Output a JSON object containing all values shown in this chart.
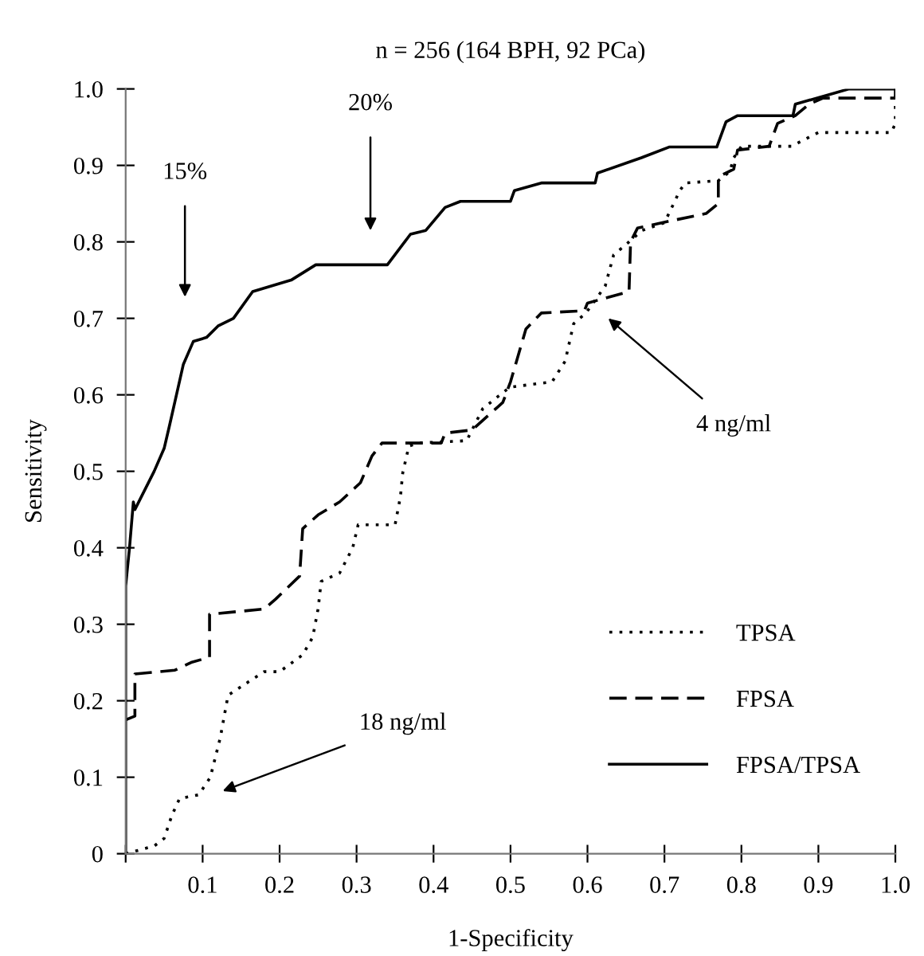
{
  "chart_data": {
    "type": "step",
    "title": "n = 256 (164 BPH, 92 PCa)",
    "xlabel": "1-Specificity",
    "ylabel": "Sensitivity",
    "xlim": [
      0,
      1.0
    ],
    "ylim": [
      0,
      1.0
    ],
    "xticks": [
      {
        "value": 0,
        "label": null
      },
      0.1,
      0.2,
      0.3,
      0.4,
      0.5,
      0.6,
      0.7,
      0.8,
      0.9,
      {
        "value": 1.0,
        "label": "1.0"
      }
    ],
    "yticks": [
      0,
      0.1,
      0.2,
      0.3,
      0.4,
      0.5,
      0.6,
      0.7,
      0.8,
      0.9,
      {
        "value": 1.0,
        "label": "1.0"
      }
    ],
    "grid": false,
    "legend": "bottom right",
    "marker": "none",
    "series": [
      {
        "name": "TPSA",
        "color": "#000000",
        "line_style": "dotted",
        "x": [
          0,
          0.037,
          0.05,
          0.06,
          0.07,
          0.095,
          0.11,
          0.123,
          0.133,
          0.16,
          0.18,
          0.2,
          0.23,
          0.243,
          0.25,
          0.254,
          0.278,
          0.295,
          0.302,
          0.35,
          0.357,
          0.36,
          0.368,
          0.381,
          0.443,
          0.464,
          0.499,
          0.554,
          0.571,
          0.582,
          0.598,
          0.623,
          0.634,
          0.654,
          0.671,
          0.7,
          0.72,
          0.727,
          0.77,
          0.785,
          0.79,
          0.8,
          0.865,
          0.9,
          0.995,
          1.0,
          1.0
        ],
        "values": [
          0,
          0.01,
          0.02,
          0.05,
          0.072,
          0.077,
          0.1,
          0.152,
          0.207,
          0.225,
          0.238,
          0.238,
          0.26,
          0.283,
          0.32,
          0.356,
          0.367,
          0.4,
          0.43,
          0.43,
          0.467,
          0.498,
          0.533,
          0.537,
          0.54,
          0.582,
          0.61,
          0.617,
          0.644,
          0.693,
          0.707,
          0.742,
          0.783,
          0.8,
          0.815,
          0.825,
          0.867,
          0.877,
          0.88,
          0.892,
          0.91,
          0.925,
          0.925,
          0.943,
          0.943,
          0.955,
          1.0
        ]
      },
      {
        "name": "FPSA",
        "color": "#000000",
        "line_style": "dashed",
        "x": [
          0,
          0.012,
          0.012,
          0.064,
          0.085,
          0.109,
          0.109,
          0.18,
          0.195,
          0.226,
          0.23,
          0.25,
          0.278,
          0.305,
          0.32,
          0.333,
          0.41,
          0.415,
          0.45,
          0.49,
          0.5,
          0.52,
          0.54,
          0.596,
          0.6,
          0.654,
          0.656,
          0.665,
          0.706,
          0.754,
          0.77,
          0.77,
          0.79,
          0.795,
          0.836,
          0.847,
          0.87,
          0.888,
          0.906,
          1.0,
          1.0
        ],
        "values": [
          0.175,
          0.18,
          0.235,
          0.24,
          0.25,
          0.257,
          0.313,
          0.32,
          0.333,
          0.363,
          0.425,
          0.443,
          0.46,
          0.485,
          0.52,
          0.537,
          0.537,
          0.55,
          0.554,
          0.59,
          0.617,
          0.686,
          0.707,
          0.71,
          0.72,
          0.735,
          0.8,
          0.818,
          0.827,
          0.837,
          0.85,
          0.885,
          0.895,
          0.92,
          0.925,
          0.955,
          0.965,
          0.98,
          0.988,
          0.988,
          1.0
        ]
      },
      {
        "name": "FPSA/TPSA",
        "color": "#000000",
        "line_style": "solid",
        "x": [
          0,
          0,
          0.005,
          0.01,
          0.012,
          0.037,
          0.05,
          0.057,
          0.075,
          0.088,
          0.105,
          0.12,
          0.14,
          0.165,
          0.215,
          0.247,
          0.34,
          0.37,
          0.39,
          0.415,
          0.435,
          0.5,
          0.505,
          0.54,
          0.61,
          0.613,
          0.67,
          0.706,
          0.768,
          0.78,
          0.795,
          0.867,
          0.87,
          0.905,
          0.94,
          1.0
        ],
        "values": [
          0,
          0.35,
          0.4,
          0.46,
          0.45,
          0.5,
          0.53,
          0.56,
          0.64,
          0.67,
          0.675,
          0.69,
          0.7,
          0.735,
          0.75,
          0.77,
          0.77,
          0.81,
          0.815,
          0.845,
          0.853,
          0.853,
          0.867,
          0.877,
          0.877,
          0.89,
          0.91,
          0.924,
          0.924,
          0.957,
          0.965,
          0.965,
          0.98,
          0.99,
          1.0,
          1.0
        ]
      }
    ],
    "annotations": [
      "15%",
      "20%",
      "4 ng/ml",
      "18 ng/ml"
    ]
  }
}
